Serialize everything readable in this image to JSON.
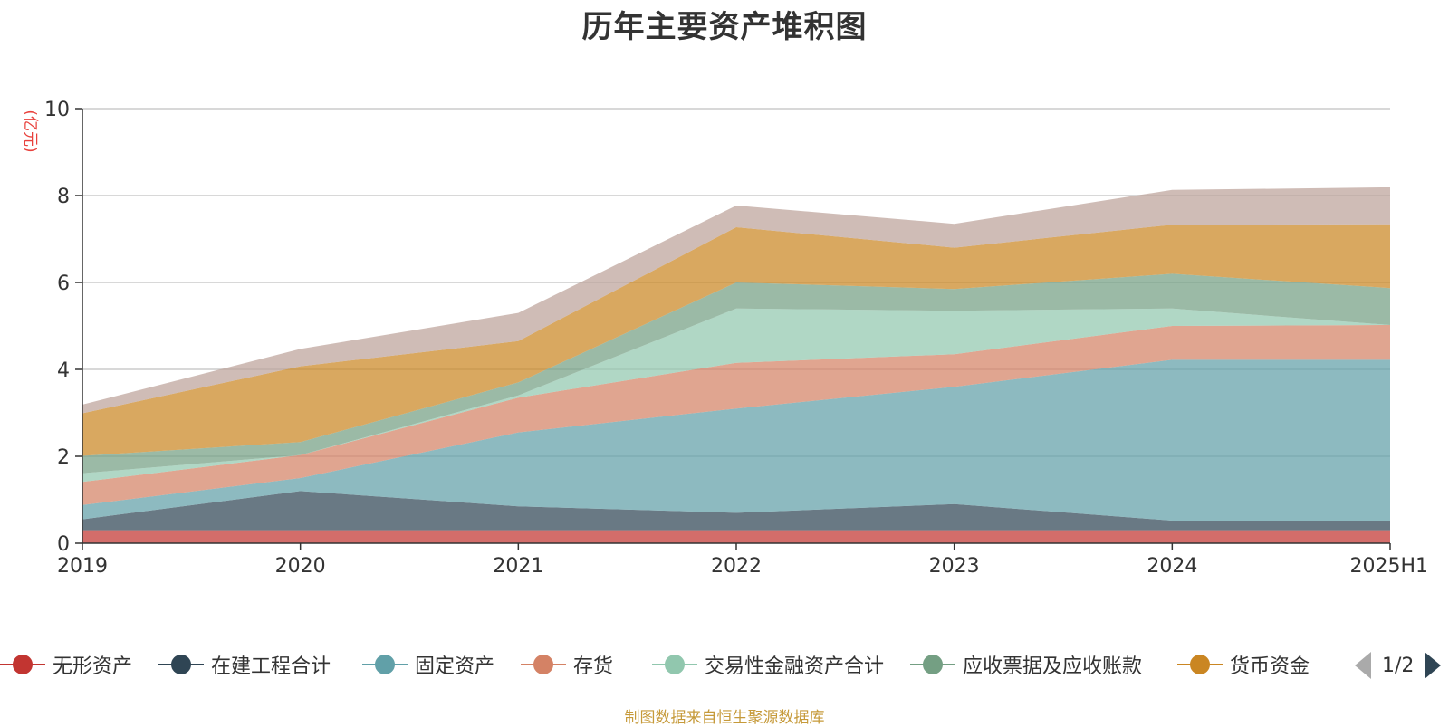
{
  "chart_data": {
    "type": "area",
    "stacked": true,
    "title": "历年主要资产堆积图",
    "ylabel": "(亿元)",
    "ylim": [
      0,
      10
    ],
    "yticks": [
      0,
      2,
      4,
      6,
      8,
      10
    ],
    "grid": true,
    "legend_position": "bottom",
    "categories": [
      "2019",
      "2020",
      "2021",
      "2022",
      "2023",
      "2024",
      "2025H1"
    ],
    "series": [
      {
        "name": "无形资产",
        "color": "#c23531",
        "values": [
          0.3,
          0.3,
          0.3,
          0.3,
          0.3,
          0.3,
          0.3
        ]
      },
      {
        "name": "在建工程合计",
        "color": "#2f4554",
        "values": [
          0.25,
          0.9,
          0.55,
          0.4,
          0.6,
          0.22,
          0.22
        ]
      },
      {
        "name": "固定资产",
        "color": "#61a0a8",
        "values": [
          0.33,
          0.3,
          1.7,
          2.4,
          2.7,
          3.7,
          3.7
        ]
      },
      {
        "name": "存货",
        "color": "#d48265",
        "values": [
          0.53,
          0.53,
          0.8,
          1.05,
          0.75,
          0.78,
          0.8
        ]
      },
      {
        "name": "交易性金融资产合计",
        "color": "#91c7ae",
        "values": [
          0.2,
          0.0,
          0.05,
          1.25,
          1.0,
          0.4,
          0.0
        ]
      },
      {
        "name": "应收票据及应收账款",
        "color": "#749f83",
        "values": [
          0.4,
          0.3,
          0.3,
          0.6,
          0.5,
          0.8,
          0.85
        ]
      },
      {
        "name": "货币资金",
        "color": "#ca8622",
        "values": [
          0.98,
          1.74,
          0.95,
          1.27,
          0.95,
          1.13,
          1.47
        ]
      },
      {
        "name": "",
        "color": "#bda29a",
        "values": [
          0.2,
          0.4,
          0.65,
          0.5,
          0.55,
          0.8,
          0.85
        ]
      }
    ]
  },
  "legend": {
    "items": [
      "无形资产",
      "在建工程合计",
      "固定资产",
      "存货",
      "交易性金融资产合计",
      "应收票据及应收账款",
      "货币资金"
    ],
    "page": "1/2"
  },
  "footer": {
    "source": "制图数据来自恒生聚源数据库"
  }
}
